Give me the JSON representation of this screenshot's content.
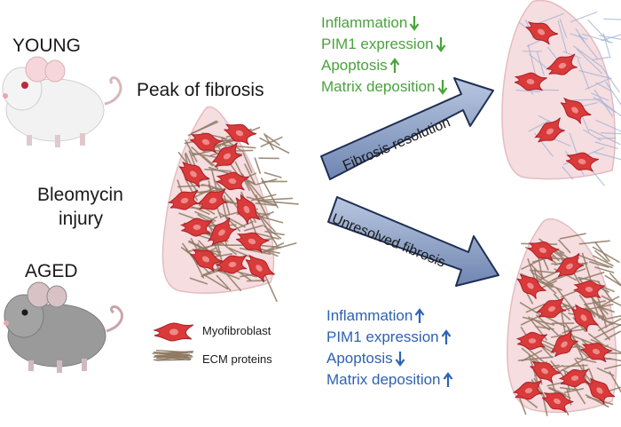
{
  "labels": {
    "young": "YOUNG",
    "aged": "AGED",
    "peak": "Peak of fibrosis",
    "injury_line1": "Bleomycin",
    "injury_line2": "injury"
  },
  "legend": {
    "myofibroblast": "Myofibroblast",
    "ecm": "ECM proteins"
  },
  "young_outcome": {
    "banner": "Fibrosis resolution",
    "items": [
      {
        "text": "Inflammation",
        "direction": "down"
      },
      {
        "text": "PIM1 expression",
        "direction": "down"
      },
      {
        "text": "Apoptosis",
        "direction": "up"
      },
      {
        "text": "Matrix deposition",
        "direction": "down"
      }
    ]
  },
  "aged_outcome": {
    "banner": "Unresolved fibrosis",
    "items": [
      {
        "text": "Inflammation",
        "direction": "up"
      },
      {
        "text": "PIM1 expression",
        "direction": "up"
      },
      {
        "text": "Apoptosis",
        "direction": "down"
      },
      {
        "text": "Matrix deposition",
        "direction": "up"
      }
    ]
  },
  "colors": {
    "green_text": "#4aa33d",
    "blue_text": "#2e62b3",
    "arrow_fill": "#7f93b9",
    "lung_fill": "#f6dde0",
    "myofibroblast": "#d93a3a",
    "ecm": "#8f7a64"
  },
  "icons": {
    "young_mouse": "white-mouse-icon",
    "aged_mouse": "grey-mouse-icon",
    "lung": "lung-icon",
    "myofibroblast": "myofibroblast-cell-icon",
    "ecm": "ecm-fiber-icon"
  }
}
